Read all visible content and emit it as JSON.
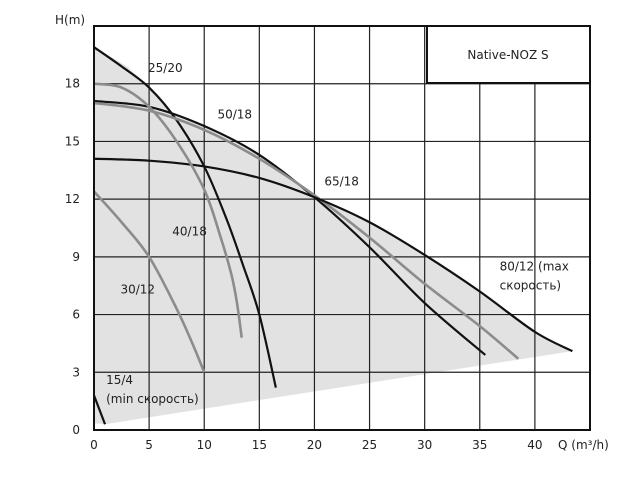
{
  "chart_data": {
    "type": "line",
    "title": "Native-NOZ S",
    "xlabel": "Q (m³/h)",
    "ylabel": "H(m)",
    "xlim": [
      0,
      45
    ],
    "ylim": [
      0,
      21
    ],
    "xticks": [
      "0",
      "5",
      "10",
      "15",
      "20",
      "25",
      "30",
      "35",
      "40"
    ],
    "yticks": [
      "0",
      "3",
      "6",
      "9",
      "12",
      "15",
      "18"
    ],
    "grid": true,
    "colors": {
      "dark": "#111111",
      "light": "#8c8c8c",
      "fill": "#e2e2e2"
    },
    "operating_region": [
      [
        0,
        19.9
      ],
      [
        3,
        18.9
      ],
      [
        5,
        17.8
      ],
      [
        6.7,
        16.6
      ],
      [
        10,
        15.8
      ],
      [
        15,
        14.3
      ],
      [
        20,
        12.1
      ],
      [
        25,
        10.8
      ],
      [
        30,
        9.1
      ],
      [
        35,
        7.2
      ],
      [
        40,
        5.1
      ],
      [
        43.4,
        4.1
      ],
      [
        1,
        0.3
      ],
      [
        0,
        0.35
      ]
    ],
    "series": [
      {
        "name": "25/20",
        "color": "dark",
        "points": [
          [
            0,
            19.9
          ],
          [
            2.5,
            18.9
          ],
          [
            5,
            17.8
          ],
          [
            7.5,
            16.1
          ],
          [
            10,
            13.7
          ],
          [
            12,
            11
          ],
          [
            13.5,
            8.6
          ],
          [
            15,
            6
          ],
          [
            16.5,
            2.2
          ]
        ]
      },
      {
        "name": "50/18",
        "color": "dark",
        "points": [
          [
            0,
            17.1
          ],
          [
            5,
            16.8
          ],
          [
            10,
            15.8
          ],
          [
            15,
            14.3
          ],
          [
            20,
            12.1
          ],
          [
            25,
            9.5
          ],
          [
            30,
            6.6
          ],
          [
            35.5,
            3.9
          ]
        ]
      },
      {
        "name": "65/18",
        "color": "light",
        "points": [
          [
            0,
            17.0
          ],
          [
            5,
            16.6
          ],
          [
            10,
            15.6
          ],
          [
            15,
            14.1
          ],
          [
            20,
            12.2
          ],
          [
            25,
            10.0
          ],
          [
            30,
            7.6
          ],
          [
            35,
            5.4
          ],
          [
            38.5,
            3.7
          ]
        ]
      },
      {
        "name": "80/12 (max",
        "label2": "скорость)",
        "color": "dark",
        "points": [
          [
            0,
            14.1
          ],
          [
            5,
            14.0
          ],
          [
            10,
            13.7
          ],
          [
            15,
            13.1
          ],
          [
            20,
            12.1
          ],
          [
            25,
            10.8
          ],
          [
            30,
            9.1
          ],
          [
            35,
            7.2
          ],
          [
            40,
            5.1
          ],
          [
            43.4,
            4.1
          ]
        ]
      },
      {
        "name": "40/18",
        "color": "light",
        "points": [
          [
            0,
            18.0
          ],
          [
            2.5,
            17.8
          ],
          [
            5,
            16.8
          ],
          [
            7.5,
            15.0
          ],
          [
            10,
            12.5
          ],
          [
            11.5,
            10
          ],
          [
            12.5,
            8
          ],
          [
            13,
            6.5
          ],
          [
            13.4,
            4.8
          ]
        ]
      },
      {
        "name": "30/12",
        "color": "light",
        "points": [
          [
            0,
            12.4
          ],
          [
            2.5,
            10.8
          ],
          [
            5,
            9.0
          ],
          [
            7.5,
            6.3
          ],
          [
            9,
            4.4
          ],
          [
            10,
            3.0
          ]
        ]
      },
      {
        "name": "15/4",
        "label2": "(min скорость)",
        "color": "dark",
        "points": [
          [
            0,
            1.8
          ],
          [
            1,
            0.3
          ]
        ]
      }
    ]
  }
}
